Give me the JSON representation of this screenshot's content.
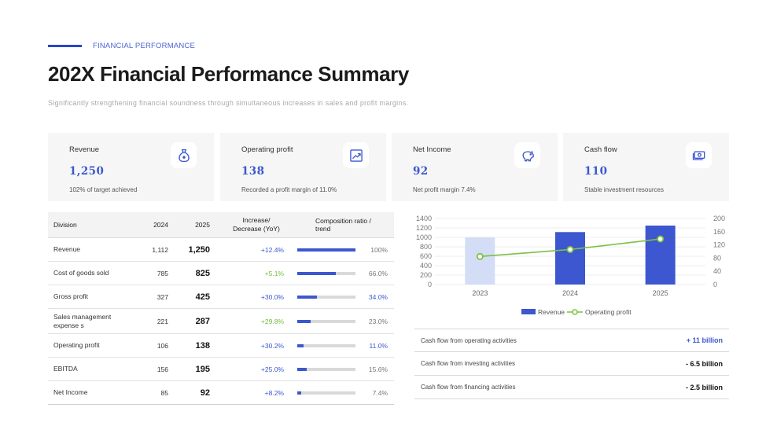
{
  "header": {
    "eyebrow": "FINANCIAL PERFORMANCE",
    "title": "202X Financial Performance Summary",
    "subtitle": "Significantly strengthening financial soundness through simultaneous increases in sales and profit margins."
  },
  "cards": [
    {
      "label": "Revenue",
      "value": "1,250",
      "note": "102% of target achieved",
      "icon": "money-bag-icon"
    },
    {
      "label": "Operating profit",
      "value": "138",
      "note": "Recorded a profit margin of 11.0%",
      "icon": "trend-chart-icon"
    },
    {
      "label": "Net Income",
      "value": "92",
      "note": "Net profit margin 7.4%",
      "icon": "piggy-bank-icon"
    },
    {
      "label": "Cash flow",
      "value": "110",
      "note": "Stable investment resources",
      "icon": "cash-icon"
    }
  ],
  "table": {
    "headers": {
      "division": "Division",
      "y2024": "2024",
      "y2025": "2025",
      "increase": "Increase/ Decrease (YoY)",
      "composition": "Composition ratio / trend"
    },
    "rows": [
      {
        "division": "Revenue",
        "y2024": "1,112",
        "y2025": "1,250",
        "increase": "+12.4%",
        "ratio": 1.0,
        "pct": "100%"
      },
      {
        "division": "Cost of goods sold",
        "y2024": "785",
        "y2025": "825",
        "increase": "+5.1%",
        "ratio": 0.66,
        "pct": "66.0%"
      },
      {
        "division": "Gross profit",
        "y2024": "327",
        "y2025": "425",
        "increase": "+30.0%",
        "ratio": 0.34,
        "pct": "34.0%"
      },
      {
        "division": "Sales management expense s",
        "y2024": "221",
        "y2025": "287",
        "increase": "+29.8%",
        "ratio": 0.23,
        "pct": "23.0%"
      },
      {
        "division": "Operating profit",
        "y2024": "106",
        "y2025": "138",
        "increase": "+30.2%",
        "ratio": 0.11,
        "pct": "11.0%"
      },
      {
        "division": "EBITDA",
        "y2024": "156",
        "y2025": "195",
        "increase": "+25.0%",
        "ratio": 0.156,
        "pct": "15.6%"
      },
      {
        "division": "Net Income",
        "y2024": "85",
        "y2025": "92",
        "increase": "+8.2%",
        "ratio": 0.074,
        "pct": "7.4%"
      }
    ],
    "colors": {
      "blue": "#3c57cf",
      "green": "#6dbf3c",
      "grey": "#777777"
    }
  },
  "chart_data": {
    "type": "bar",
    "categories": [
      "2023",
      "2024",
      "2025"
    ],
    "series": [
      {
        "name": "Revenue",
        "type": "bar",
        "axis": "left",
        "values": [
          1000,
          1112,
          1250
        ],
        "colors": [
          "#d3ddf6",
          "#3c57cf",
          "#3c57cf"
        ]
      },
      {
        "name": "Operating profit",
        "type": "line",
        "axis": "right",
        "values": [
          85,
          106,
          138
        ],
        "color": "#7cc142"
      }
    ],
    "left_axis": {
      "ylim": [
        0,
        1400
      ],
      "ticks": [
        "0",
        "200",
        "400",
        "600",
        "800",
        "1000",
        "1200",
        "1400"
      ]
    },
    "right_axis": {
      "ylim": [
        0,
        200
      ],
      "ticks": [
        "0",
        "40",
        "80",
        "120",
        "160",
        "200"
      ]
    },
    "grid": true,
    "legend": "bottom",
    "title": "",
    "xlabel": "",
    "ylabel": ""
  },
  "cashflow": [
    {
      "label": "Cash flow from operating activities",
      "value": "+ 11 billion"
    },
    {
      "label": "Cash flow from investing activities",
      "value": "- 6.5 billion"
    },
    {
      "label": "Cash flow from financing activities",
      "value": "- 2.5 billion"
    }
  ]
}
